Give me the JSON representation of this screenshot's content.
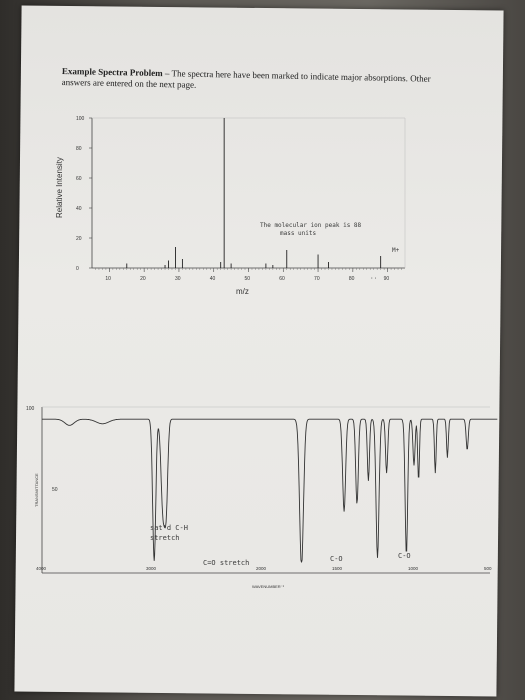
{
  "heading": {
    "title": "Example Spectra Problem",
    "text": " – The spectra here have been marked to indicate major absorptions. Other answers are entered on the next page."
  },
  "ms": {
    "ylabel": "Relative Intensity",
    "xlabel": "m/z",
    "yticks": [
      "100",
      "80",
      "60",
      "40",
      "20",
      "0"
    ],
    "xticks": [
      "10",
      "20",
      "30",
      "40",
      "50",
      "60",
      "70",
      "80",
      "90"
    ],
    "annotation_line1": "The molecular ion peak is 88",
    "annotation_line2": "mass units",
    "mplus": "M+",
    "arrow": "··",
    "peaks": [
      [
        15,
        3
      ],
      [
        26,
        2
      ],
      [
        27,
        5
      ],
      [
        29,
        14
      ],
      [
        31,
        6
      ],
      [
        42,
        4
      ],
      [
        43,
        100
      ],
      [
        45,
        3
      ],
      [
        55,
        3
      ],
      [
        57,
        2
      ],
      [
        61,
        12
      ],
      [
        70,
        9
      ],
      [
        73,
        4
      ],
      [
        88,
        8
      ]
    ]
  },
  "ir": {
    "ytop": "100",
    "ymid": "50",
    "ylabel": "TRANSMITTANCE",
    "xticks": [
      "4000",
      "3000",
      "2000",
      "1500",
      "1000",
      "500"
    ],
    "xlabel": "WAVENUMBER⁻¹",
    "ann_ch1": "sat'd C-H",
    "ann_ch2": "stretch",
    "ann_co": "C=O stretch",
    "ann_c_o1": "C-O",
    "ann_c_o2": "C-O"
  }
}
